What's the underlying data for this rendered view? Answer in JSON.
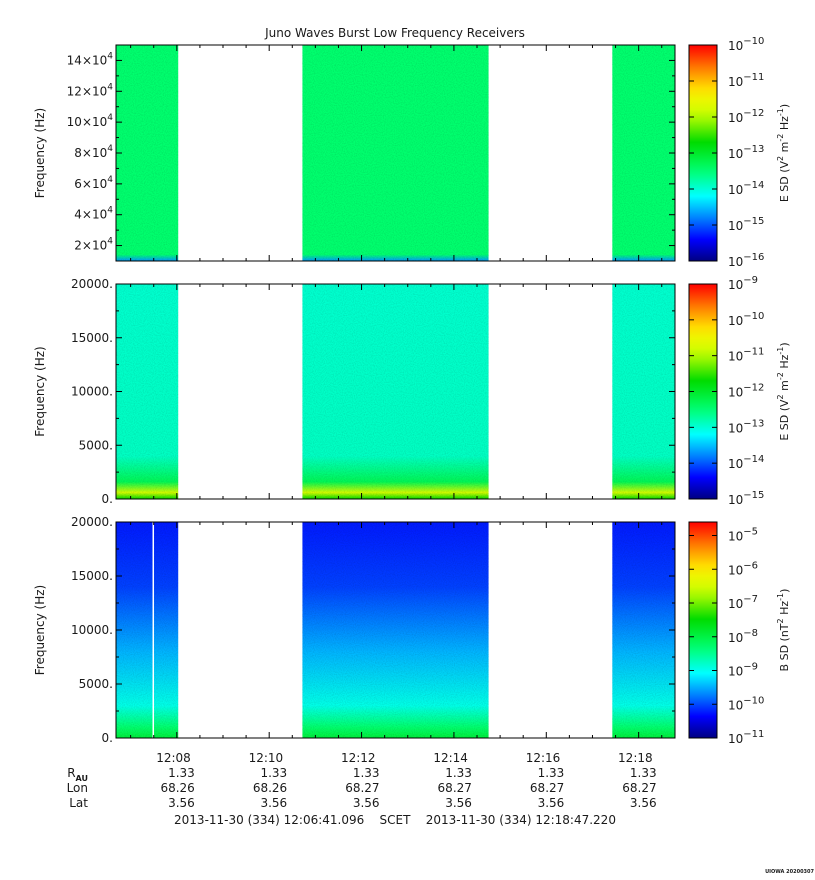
{
  "chart_data": {
    "type": "heatmap",
    "title": "Juno Waves Burst Low Frequency Receivers",
    "x_tick_labels": [
      "12:08",
      "12:10",
      "12:12",
      "12:14",
      "12:16",
      "12:18"
    ],
    "x_ticks_minutes": [
      8,
      10,
      12,
      14,
      16,
      18
    ],
    "x_range_minutes": [
      6.683,
      18.787
    ],
    "data_intervals_minutes": [
      [
        6.683,
        8.03
      ],
      [
        10.72,
        14.75
      ],
      [
        17.43,
        18.787
      ]
    ],
    "panels": [
      {
        "ylabel": "Frequency (Hz)",
        "yscale": "linear",
        "ylim": [
          10000,
          150000
        ],
        "y_tick_values": [
          20000,
          40000,
          60000,
          80000,
          100000,
          120000,
          140000
        ],
        "y_tick_labels": [
          {
            "mantissa": "2×10",
            "exp": "4"
          },
          {
            "mantissa": "4×10",
            "exp": "4"
          },
          {
            "mantissa": "6×10",
            "exp": "4"
          },
          {
            "mantissa": "8×10",
            "exp": "4"
          },
          {
            "mantissa": "10×10",
            "exp": "4"
          },
          {
            "mantissa": "12×10",
            "exp": "4"
          },
          {
            "mantissa": "14×10",
            "exp": "4"
          }
        ],
        "colorbar": {
          "label_main": "E SD (V",
          "label_tail": " m",
          "label_hz": " Hz",
          "label_sup1": "2",
          "label_sup2": "-2",
          "label_sup3": "-1",
          "label_close": ")",
          "exponents": [
            "-16",
            "-15",
            "-14",
            "-13",
            "-12",
            "-11",
            "-10"
          ],
          "log_range": [
            -16,
            -10
          ]
        },
        "colormap_level": 0.42
      },
      {
        "ylabel": "Frequency (Hz)",
        "yscale": "linear",
        "ylim": [
          0,
          20000
        ],
        "y_tick_values": [
          0,
          5000,
          10000,
          15000,
          20000
        ],
        "y_tick_labels": [
          "0.",
          "5000.",
          "10000.",
          "15000.",
          "20000."
        ],
        "colorbar": {
          "label_main": "E SD (V",
          "label_tail": " m",
          "label_hz": " Hz",
          "label_sup1": "2",
          "label_sup2": "-2",
          "label_sup3": "-1",
          "label_close": ")",
          "exponents": [
            "-15",
            "-14",
            "-13",
            "-12",
            "-11",
            "-10",
            "-9"
          ],
          "log_range": [
            -15,
            -9
          ]
        },
        "colormap_level": 0.34
      },
      {
        "ylabel": "Frequency (Hz)",
        "yscale": "linear",
        "ylim": [
          0,
          20000
        ],
        "y_tick_values": [
          0,
          5000,
          10000,
          15000,
          20000
        ],
        "y_tick_labels": [
          "0.",
          "5000.",
          "10000.",
          "15000.",
          "20000."
        ],
        "colorbar": {
          "label_main": "B SD (nT",
          "label_tail": " Hz",
          "label_hz": "",
          "label_sup1": "2",
          "label_sup2": "-1",
          "label_sup3": "",
          "label_close": ")",
          "exponents": [
            "-11",
            "-10",
            "-9",
            "-8",
            "-7",
            "-6",
            "-5"
          ],
          "log_range": [
            -11,
            -4.6
          ]
        },
        "colormap_level": 0.18
      }
    ],
    "ephemeris": {
      "rows": [
        {
          "label": "R",
          "sub": "AU",
          "values": [
            "1.33",
            "1.33",
            "1.33",
            "1.33",
            "1.33",
            "1.33"
          ]
        },
        {
          "label": "Lon",
          "sub": "",
          "values": [
            "68.26",
            "68.26",
            "68.27",
            "68.27",
            "68.27",
            "68.27"
          ]
        },
        {
          "label": "Lat",
          "sub": "",
          "values": [
            "3.56",
            "3.56",
            "3.56",
            "3.56",
            "3.56",
            "3.56"
          ]
        }
      ]
    },
    "time_range_text": "2013-11-30 (334) 12:06:41.096    SCET    2013-11-30 (334) 12:18:47.220",
    "footer": "UIOWA 20200307"
  }
}
